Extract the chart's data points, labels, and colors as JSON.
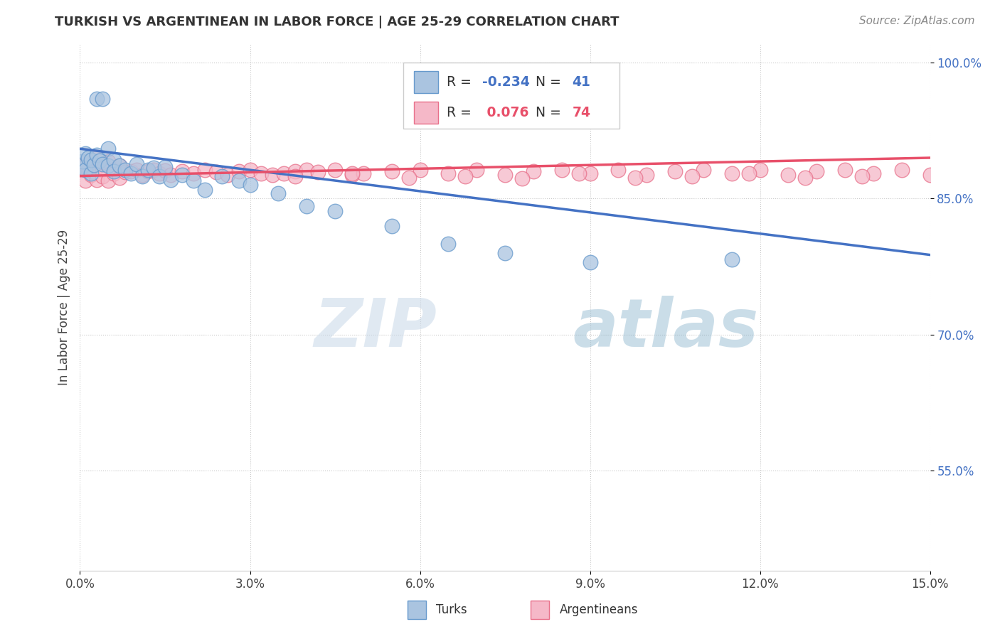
{
  "title": "TURKISH VS ARGENTINEAN IN LABOR FORCE | AGE 25-29 CORRELATION CHART",
  "source": "Source: ZipAtlas.com",
  "ylabel": "In Labor Force | Age 25-29",
  "xlim": [
    0.0,
    0.15
  ],
  "ylim": [
    0.44,
    1.02
  ],
  "xtick_vals": [
    0.0,
    0.03,
    0.06,
    0.09,
    0.12,
    0.15
  ],
  "xtick_labels": [
    "0.0%",
    "3.0%",
    "6.0%",
    "9.0%",
    "12.0%",
    "15.0%"
  ],
  "ytick_vals": [
    0.55,
    0.7,
    0.85,
    1.0
  ],
  "ytick_labels": [
    "55.0%",
    "70.0%",
    "85.0%",
    "100.0%"
  ],
  "turks_x": [
    0.0002,
    0.0005,
    0.001,
    0.001,
    0.0015,
    0.002,
    0.002,
    0.0025,
    0.003,
    0.003,
    0.0035,
    0.004,
    0.004,
    0.005,
    0.005,
    0.006,
    0.006,
    0.007,
    0.008,
    0.009,
    0.01,
    0.011,
    0.012,
    0.013,
    0.014,
    0.015,
    0.016,
    0.018,
    0.02,
    0.022,
    0.025,
    0.028,
    0.03,
    0.035,
    0.04,
    0.045,
    0.055,
    0.065,
    0.075,
    0.09,
    0.115
  ],
  "turks_y": [
    0.884,
    0.891,
    0.9,
    0.882,
    0.895,
    0.878,
    0.893,
    0.887,
    0.96,
    0.898,
    0.892,
    0.96,
    0.888,
    0.905,
    0.886,
    0.893,
    0.88,
    0.886,
    0.882,
    0.878,
    0.888,
    0.875,
    0.882,
    0.884,
    0.875,
    0.885,
    0.871,
    0.876,
    0.87,
    0.86,
    0.875,
    0.87,
    0.865,
    0.856,
    0.842,
    0.836,
    0.82,
    0.8,
    0.79,
    0.78,
    0.783
  ],
  "argentineans_x": [
    0.0002,
    0.0005,
    0.001,
    0.001,
    0.0015,
    0.002,
    0.002,
    0.0025,
    0.003,
    0.003,
    0.004,
    0.004,
    0.005,
    0.005,
    0.006,
    0.006,
    0.007,
    0.007,
    0.008,
    0.009,
    0.01,
    0.011,
    0.012,
    0.013,
    0.014,
    0.015,
    0.016,
    0.018,
    0.02,
    0.022,
    0.024,
    0.026,
    0.028,
    0.03,
    0.032,
    0.034,
    0.036,
    0.038,
    0.04,
    0.042,
    0.045,
    0.048,
    0.05,
    0.055,
    0.06,
    0.065,
    0.07,
    0.075,
    0.08,
    0.085,
    0.09,
    0.095,
    0.1,
    0.105,
    0.11,
    0.115,
    0.12,
    0.125,
    0.13,
    0.135,
    0.14,
    0.145,
    0.15,
    0.038,
    0.048,
    0.058,
    0.068,
    0.078,
    0.088,
    0.098,
    0.108,
    0.118,
    0.128,
    0.138
  ],
  "argentineans_y": [
    0.882,
    0.886,
    0.888,
    0.87,
    0.882,
    0.876,
    0.89,
    0.879,
    0.895,
    0.871,
    0.882,
    0.875,
    0.891,
    0.87,
    0.882,
    0.878,
    0.886,
    0.873,
    0.879,
    0.88,
    0.882,
    0.876,
    0.88,
    0.882,
    0.878,
    0.881,
    0.876,
    0.88,
    0.878,
    0.882,
    0.879,
    0.876,
    0.88,
    0.882,
    0.878,
    0.876,
    0.878,
    0.88,
    0.882,
    0.879,
    0.882,
    0.876,
    0.878,
    0.88,
    0.882,
    0.878,
    0.882,
    0.876,
    0.88,
    0.882,
    0.878,
    0.882,
    0.876,
    0.88,
    0.882,
    0.878,
    0.882,
    0.876,
    0.88,
    0.882,
    0.878,
    0.882,
    0.876,
    0.875,
    0.878,
    0.873,
    0.875,
    0.872,
    0.878,
    0.873,
    0.875,
    0.878,
    0.873,
    0.875
  ],
  "turks_color": "#aac4e0",
  "turks_edge": "#6699cc",
  "argentineans_color": "#f5b8c8",
  "argentineans_edge": "#e8708a",
  "trend_turks_color": "#4472c4",
  "trend_arg_color": "#e8506a",
  "turks_R": -0.234,
  "turks_N": 41,
  "arg_R": 0.076,
  "arg_N": 74,
  "watermark_zip": "ZIP",
  "watermark_atlas": "atlas",
  "title_fontsize": 13,
  "source_fontsize": 11,
  "tick_fontsize": 12,
  "ylabel_fontsize": 12
}
